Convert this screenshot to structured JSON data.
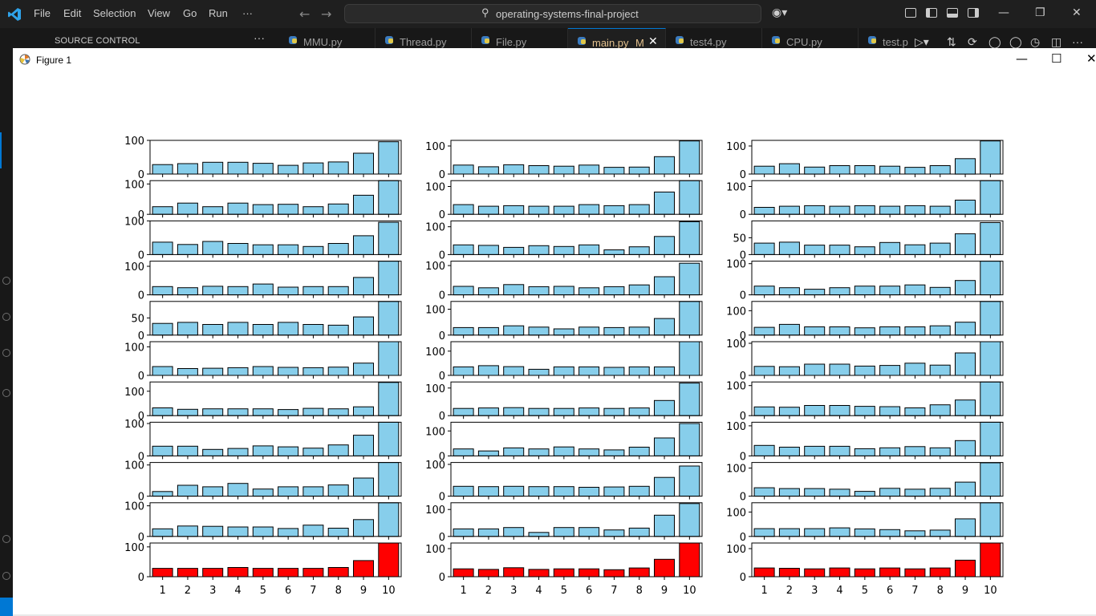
{
  "vscode": {
    "menu": [
      "File",
      "Edit",
      "Selection",
      "View",
      "Go",
      "Run",
      "···"
    ],
    "search_text": "operating-systems-final-project",
    "sidebar_title": "SOURCE CONTROL",
    "sidebar_more": "···",
    "tabs": [
      {
        "label": "MMU.py",
        "active": false
      },
      {
        "label": "Thread.py",
        "active": false
      },
      {
        "label": "File.py",
        "active": false
      },
      {
        "label": "main.py",
        "active": true,
        "modified": "M"
      },
      {
        "label": "test4.py",
        "active": false
      },
      {
        "label": "CPU.py",
        "active": false
      },
      {
        "label": "test.p",
        "active": false
      }
    ],
    "toolbar_more": "···",
    "colors": {
      "accent": "#0078d4",
      "modified": "#e2c08d",
      "bg": "#1f1f1f"
    }
  },
  "figure_window": {
    "title": "Figure 1",
    "icon": "matplotlib-icon"
  },
  "chart_data": {
    "type": "bar",
    "layout": "grid of 11 rows x 3 columns of small bar charts",
    "categories": [
      "1",
      "2",
      "3",
      "4",
      "5",
      "6",
      "7",
      "8",
      "9",
      "10"
    ],
    "bar_color": "#87ceeb",
    "last_row_color": "#ff0000",
    "grid": false,
    "subplots": [
      {
        "row": 1,
        "col": 1,
        "values": [
          28,
          31,
          35,
          35,
          32,
          26,
          33,
          36,
          62,
          96
        ],
        "ylim": [
          0,
          100
        ],
        "yticks": [
          0,
          100
        ]
      },
      {
        "row": 1,
        "col": 2,
        "values": [
          32,
          26,
          33,
          30,
          28,
          32,
          24,
          25,
          62,
          118
        ],
        "ylim": [
          0,
          120
        ],
        "yticks": [
          0,
          100
        ]
      },
      {
        "row": 1,
        "col": 3,
        "values": [
          28,
          37,
          25,
          30,
          30,
          28,
          24,
          30,
          55,
          118
        ],
        "ylim": [
          0,
          120
        ],
        "yticks": [
          0,
          100
        ]
      },
      {
        "row": 2,
        "col": 1,
        "values": [
          25,
          37,
          25,
          37,
          32,
          33,
          25,
          34,
          63,
          111
        ],
        "ylim": [
          0,
          111
        ],
        "yticks": [
          0,
          100
        ]
      },
      {
        "row": 2,
        "col": 2,
        "values": [
          35,
          29,
          31,
          29,
          29,
          35,
          31,
          35,
          80,
          121
        ],
        "ylim": [
          0,
          121
        ],
        "yticks": [
          0,
          100
        ]
      },
      {
        "row": 2,
        "col": 3,
        "values": [
          25,
          29,
          31,
          29,
          31,
          29,
          31,
          29,
          51,
          121
        ],
        "ylim": [
          0,
          121
        ],
        "yticks": [
          0,
          100
        ]
      },
      {
        "row": 3,
        "col": 1,
        "values": [
          37,
          30,
          39,
          33,
          29,
          29,
          24,
          33,
          56,
          96
        ],
        "ylim": [
          0,
          100
        ],
        "yticks": [
          0,
          100
        ]
      },
      {
        "row": 3,
        "col": 2,
        "values": [
          35,
          33,
          26,
          32,
          29,
          35,
          17,
          28,
          65,
          118
        ],
        "ylim": [
          0,
          121
        ],
        "yticks": [
          0,
          100
        ]
      },
      {
        "row": 3,
        "col": 3,
        "values": [
          34,
          37,
          28,
          28,
          23,
          36,
          29,
          34,
          62,
          95
        ],
        "ylim": [
          0,
          100
        ],
        "yticks": [
          0,
          50
        ]
      },
      {
        "row": 4,
        "col": 1,
        "values": [
          29,
          25,
          30,
          29,
          38,
          27,
          29,
          29,
          61,
          118
        ],
        "ylim": [
          0,
          118
        ],
        "yticks": [
          0,
          100
        ]
      },
      {
        "row": 4,
        "col": 2,
        "values": [
          29,
          24,
          35,
          28,
          29,
          24,
          28,
          34,
          62,
          108
        ],
        "ylim": [
          0,
          115
        ],
        "yticks": [
          0,
          100
        ]
      },
      {
        "row": 4,
        "col": 3,
        "values": [
          28,
          23,
          18,
          23,
          28,
          28,
          32,
          24,
          46,
          108
        ],
        "ylim": [
          0,
          108
        ],
        "yticks": [
          0,
          100
        ]
      },
      {
        "row": 5,
        "col": 1,
        "values": [
          34,
          37,
          31,
          37,
          31,
          37,
          31,
          29,
          53,
          98
        ],
        "ylim": [
          0,
          98
        ],
        "yticks": [
          0,
          50
        ]
      },
      {
        "row": 5,
        "col": 2,
        "values": [
          29,
          29,
          36,
          31,
          24,
          31,
          29,
          31,
          64,
          130
        ],
        "ylim": [
          0,
          130
        ],
        "yticks": [
          0,
          100
        ]
      },
      {
        "row": 5,
        "col": 3,
        "values": [
          32,
          44,
          34,
          34,
          30,
          34,
          34,
          38,
          53,
          138
        ],
        "ylim": [
          0,
          138
        ],
        "yticks": [
          0,
          100
        ]
      },
      {
        "row": 6,
        "col": 1,
        "values": [
          31,
          24,
          25,
          27,
          31,
          28,
          27,
          29,
          43,
          118
        ],
        "ylim": [
          0,
          118
        ],
        "yticks": [
          0,
          100
        ]
      },
      {
        "row": 6,
        "col": 2,
        "values": [
          35,
          40,
          36,
          25,
          35,
          35,
          33,
          35,
          35,
          139
        ],
        "ylim": [
          0,
          139
        ],
        "yticks": [
          0,
          100
        ]
      },
      {
        "row": 6,
        "col": 3,
        "values": [
          28,
          27,
          35,
          35,
          29,
          31,
          38,
          32,
          70,
          105
        ],
        "ylim": [
          0,
          105
        ],
        "yticks": [
          0,
          100
        ]
      },
      {
        "row": 7,
        "col": 1,
        "values": [
          32,
          26,
          28,
          28,
          28,
          25,
          30,
          28,
          36,
          136
        ],
        "ylim": [
          0,
          138
        ],
        "yticks": [
          0,
          100
        ]
      },
      {
        "row": 7,
        "col": 2,
        "values": [
          26,
          28,
          29,
          26,
          26,
          28,
          26,
          28,
          55,
          118
        ],
        "ylim": [
          0,
          122
        ],
        "yticks": [
          0,
          100
        ]
      },
      {
        "row": 7,
        "col": 3,
        "values": [
          29,
          28,
          34,
          34,
          31,
          30,
          26,
          36,
          52,
          112
        ],
        "ylim": [
          0,
          112
        ],
        "yticks": [
          0,
          100
        ]
      },
      {
        "row": 8,
        "col": 1,
        "values": [
          30,
          30,
          20,
          23,
          31,
          28,
          24,
          34,
          64,
          104
        ],
        "ylim": [
          0,
          104
        ],
        "yticks": [
          0,
          100
        ]
      },
      {
        "row": 8,
        "col": 2,
        "values": [
          28,
          20,
          32,
          28,
          36,
          28,
          24,
          35,
          72,
          130
        ],
        "ylim": [
          0,
          135
        ],
        "yticks": [
          0,
          100
        ]
      },
      {
        "row": 8,
        "col": 3,
        "values": [
          35,
          29,
          32,
          32,
          24,
          27,
          31,
          27,
          51,
          112
        ],
        "ylim": [
          0,
          112
        ],
        "yticks": [
          0,
          100
        ]
      },
      {
        "row": 9,
        "col": 1,
        "values": [
          15,
          35,
          30,
          41,
          23,
          30,
          30,
          36,
          58,
          108
        ],
        "ylim": [
          0,
          108
        ],
        "yticks": [
          0,
          100
        ]
      },
      {
        "row": 9,
        "col": 2,
        "values": [
          31,
          30,
          31,
          30,
          30,
          28,
          29,
          31,
          59,
          95
        ],
        "ylim": [
          0,
          106
        ],
        "yticks": [
          0,
          100
        ]
      },
      {
        "row": 9,
        "col": 3,
        "values": [
          30,
          27,
          27,
          25,
          17,
          28,
          25,
          28,
          50,
          119
        ],
        "ylim": [
          0,
          120
        ],
        "yticks": [
          0,
          100
        ]
      },
      {
        "row": 10,
        "col": 1,
        "values": [
          25,
          34,
          33,
          31,
          31,
          26,
          37,
          27,
          55,
          110
        ],
        "ylim": [
          0,
          110
        ],
        "yticks": [
          0,
          100
        ]
      },
      {
        "row": 10,
        "col": 2,
        "values": [
          28,
          28,
          33,
          15,
          33,
          33,
          24,
          31,
          79,
          122
        ],
        "ylim": [
          0,
          125
        ],
        "yticks": [
          0,
          100
        ]
      },
      {
        "row": 10,
        "col": 3,
        "values": [
          32,
          32,
          32,
          35,
          31,
          28,
          23,
          26,
          72,
          138
        ],
        "ylim": [
          0,
          138
        ],
        "yticks": [
          0,
          100
        ]
      },
      {
        "row": 11,
        "col": 1,
        "values": [
          28,
          28,
          28,
          31,
          28,
          28,
          28,
          31,
          54,
          113
        ],
        "ylim": [
          0,
          113
        ],
        "yticks": [
          0,
          100
        ],
        "color": "#ff0000"
      },
      {
        "row": 11,
        "col": 2,
        "values": [
          28,
          26,
          32,
          26,
          28,
          28,
          25,
          31,
          62,
          120
        ],
        "ylim": [
          0,
          120
        ],
        "yticks": [
          0,
          100
        ],
        "color": "#ff0000"
      },
      {
        "row": 11,
        "col": 3,
        "values": [
          31,
          30,
          28,
          31,
          28,
          31,
          28,
          31,
          59,
          120
        ],
        "ylim": [
          0,
          120
        ],
        "yticks": [
          0,
          100
        ],
        "color": "#ff0000"
      }
    ]
  }
}
